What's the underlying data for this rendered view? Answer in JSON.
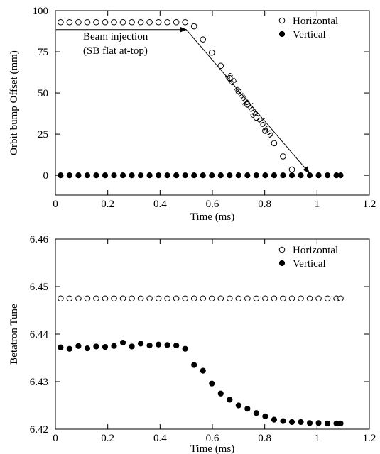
{
  "chart_data": [
    {
      "type": "scatter",
      "xlabel": "Time (ms)",
      "ylabel": "Orbit bump Offset (mm)",
      "xlim": [
        0,
        1.2
      ],
      "ylim": [
        -12,
        100
      ],
      "xticks": [
        0,
        0.2,
        0.4,
        0.6,
        0.8,
        1,
        1.2
      ],
      "xtick_labels": [
        "0",
        "0.2",
        "0.4",
        "0.6",
        "0.8",
        "1",
        "1.2"
      ],
      "yticks": [
        0,
        25,
        50,
        75,
        100
      ],
      "ytick_labels": [
        "0",
        "25",
        "50",
        "75",
        "100"
      ],
      "grid": false,
      "legend_position": "top-right",
      "series": [
        {
          "name": "Horizontal",
          "marker": "open-circle",
          "points": [
            [
              0.02,
              93
            ],
            [
              0.054,
              93
            ],
            [
              0.088,
              93
            ],
            [
              0.122,
              93
            ],
            [
              0.156,
              93
            ],
            [
              0.19,
              93
            ],
            [
              0.224,
              93
            ],
            [
              0.258,
              93
            ],
            [
              0.292,
              93
            ],
            [
              0.326,
              93
            ],
            [
              0.36,
              93
            ],
            [
              0.394,
              93
            ],
            [
              0.428,
              93
            ],
            [
              0.462,
              93
            ],
            [
              0.496,
              93
            ],
            [
              0.53,
              90.5
            ],
            [
              0.564,
              82.5
            ],
            [
              0.598,
              74.5
            ],
            [
              0.632,
              66.5
            ],
            [
              0.666,
              59
            ],
            [
              0.7,
              51
            ],
            [
              0.734,
              43
            ],
            [
              0.768,
              35
            ],
            [
              0.802,
              27
            ],
            [
              0.836,
              19.5
            ],
            [
              0.87,
              11.5
            ],
            [
              0.904,
              3.5
            ]
          ]
        },
        {
          "name": "Vertical",
          "marker": "filled-circle",
          "points": [
            [
              0.02,
              0
            ],
            [
              0.054,
              0
            ],
            [
              0.088,
              0
            ],
            [
              0.122,
              0
            ],
            [
              0.156,
              0
            ],
            [
              0.19,
              0
            ],
            [
              0.224,
              0
            ],
            [
              0.258,
              0
            ],
            [
              0.292,
              0
            ],
            [
              0.326,
              0
            ],
            [
              0.36,
              0
            ],
            [
              0.394,
              0
            ],
            [
              0.428,
              0
            ],
            [
              0.462,
              0
            ],
            [
              0.496,
              0
            ],
            [
              0.53,
              0
            ],
            [
              0.564,
              0
            ],
            [
              0.598,
              0
            ],
            [
              0.632,
              0
            ],
            [
              0.666,
              0
            ],
            [
              0.7,
              0
            ],
            [
              0.734,
              0
            ],
            [
              0.768,
              0
            ],
            [
              0.802,
              0
            ],
            [
              0.836,
              0
            ],
            [
              0.87,
              0
            ],
            [
              0.904,
              0
            ],
            [
              0.938,
              0
            ],
            [
              0.972,
              0
            ],
            [
              1.006,
              0
            ],
            [
              1.04,
              0
            ],
            [
              1.074,
              0
            ],
            [
              1.09,
              0
            ]
          ]
        }
      ],
      "annotations": [
        {
          "lines": [
            "Beam injection",
            "(SB flat at-top)"
          ],
          "arrow_from": [
            0,
            88.5
          ],
          "arrow_to": [
            0.5,
            88.5
          ]
        },
        {
          "text": "SB ramping down",
          "arrow_from": [
            0.5,
            88.5
          ],
          "arrow_to": [
            0.97,
            1.5
          ]
        }
      ]
    },
    {
      "type": "scatter",
      "xlabel": "Time (ms)",
      "ylabel": "Betatron Tune",
      "xlim": [
        0,
        1.2
      ],
      "ylim": [
        6.42,
        6.46
      ],
      "xticks": [
        0,
        0.2,
        0.4,
        0.6,
        0.8,
        1,
        1.2
      ],
      "xtick_labels": [
        "0",
        "0.2",
        "0.4",
        "0.6",
        "0.8",
        "1",
        "1.2"
      ],
      "yticks": [
        6.42,
        6.43,
        6.44,
        6.45,
        6.46
      ],
      "ytick_labels": [
        "6.42",
        "6.43",
        "6.44",
        "6.45",
        "6.46"
      ],
      "grid": false,
      "legend_position": "top-right",
      "series": [
        {
          "name": "Horizontal",
          "marker": "open-circle",
          "points": [
            [
              0.02,
              6.4475
            ],
            [
              0.054,
              6.4475
            ],
            [
              0.088,
              6.4475
            ],
            [
              0.122,
              6.4475
            ],
            [
              0.156,
              6.4475
            ],
            [
              0.19,
              6.4475
            ],
            [
              0.224,
              6.4475
            ],
            [
              0.258,
              6.4475
            ],
            [
              0.292,
              6.4475
            ],
            [
              0.326,
              6.4475
            ],
            [
              0.36,
              6.4475
            ],
            [
              0.394,
              6.4475
            ],
            [
              0.428,
              6.4475
            ],
            [
              0.462,
              6.4475
            ],
            [
              0.496,
              6.4475
            ],
            [
              0.53,
              6.4475
            ],
            [
              0.564,
              6.4475
            ],
            [
              0.598,
              6.4475
            ],
            [
              0.632,
              6.4475
            ],
            [
              0.666,
              6.4475
            ],
            [
              0.7,
              6.4475
            ],
            [
              0.734,
              6.4475
            ],
            [
              0.768,
              6.4475
            ],
            [
              0.802,
              6.4475
            ],
            [
              0.836,
              6.4475
            ],
            [
              0.87,
              6.4475
            ],
            [
              0.904,
              6.4475
            ],
            [
              0.938,
              6.4475
            ],
            [
              0.972,
              6.4475
            ],
            [
              1.006,
              6.4475
            ],
            [
              1.04,
              6.4475
            ],
            [
              1.074,
              6.4475
            ],
            [
              1.09,
              6.4475
            ]
          ]
        },
        {
          "name": "Vertical",
          "marker": "filled-circle",
          "points": [
            [
              0.02,
              6.4372
            ],
            [
              0.054,
              6.4369
            ],
            [
              0.088,
              6.4375
            ],
            [
              0.122,
              6.437
            ],
            [
              0.156,
              6.4374
            ],
            [
              0.19,
              6.4373
            ],
            [
              0.224,
              6.4375
            ],
            [
              0.258,
              6.4382
            ],
            [
              0.292,
              6.4374
            ],
            [
              0.326,
              6.438
            ],
            [
              0.36,
              6.4376
            ],
            [
              0.394,
              6.4378
            ],
            [
              0.428,
              6.4377
            ],
            [
              0.462,
              6.4376
            ],
            [
              0.496,
              6.4369
            ],
            [
              0.53,
              6.4335
            ],
            [
              0.564,
              6.4323
            ],
            [
              0.598,
              6.4296
            ],
            [
              0.632,
              6.4275
            ],
            [
              0.666,
              6.4262
            ],
            [
              0.7,
              6.425
            ],
            [
              0.734,
              6.4243
            ],
            [
              0.768,
              6.4234
            ],
            [
              0.802,
              6.4227
            ],
            [
              0.836,
              6.422
            ],
            [
              0.87,
              6.4217
            ],
            [
              0.904,
              6.4215
            ],
            [
              0.938,
              6.4215
            ],
            [
              0.972,
              6.4213
            ],
            [
              1.006,
              6.4213
            ],
            [
              1.04,
              6.4212
            ],
            [
              1.074,
              6.4212
            ],
            [
              1.09,
              6.4212
            ]
          ]
        }
      ]
    }
  ]
}
